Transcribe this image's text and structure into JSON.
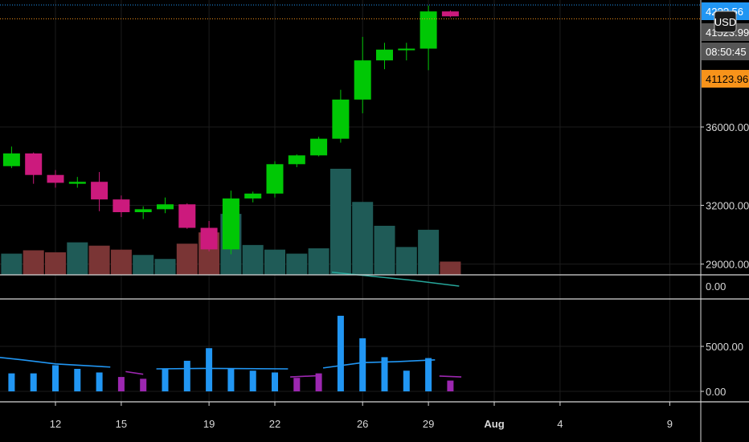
{
  "chart_data": {
    "type": "candlestick",
    "currency": "USD",
    "x_ticks": [
      "12",
      "15",
      "19",
      "22",
      "26",
      "29",
      "Aug",
      "4",
      "9"
    ],
    "price_axis": {
      "ticks": [
        {
          "label": "36000.00",
          "value": 36000
        },
        {
          "label": "32000.00",
          "value": 32000
        },
        {
          "label": "29000.00",
          "value": 29000
        }
      ],
      "volume_zero_label": "0.00",
      "ylim": [
        28000,
        42500
      ]
    },
    "price_tags": [
      {
        "label": "42??.56",
        "value": 42230,
        "color": "#2196f3"
      },
      {
        "label": "41523.99",
        "value": 41524,
        "color": "#555555"
      },
      {
        "label": "08:50:45",
        "value": 40900,
        "color": "#555555"
      },
      {
        "label": "41123.96",
        "value": 41124,
        "color": "#f7931a"
      }
    ],
    "candles": [
      {
        "day": 9,
        "open": 34400,
        "high": 34750,
        "low": 33850,
        "close": 34000
      },
      {
        "day": 10,
        "open": 34000,
        "high": 35000,
        "low": 33900,
        "close": 34650
      },
      {
        "day": 11,
        "open": 34650,
        "high": 34700,
        "low": 33100,
        "close": 33550
      },
      {
        "day": 12,
        "open": 33550,
        "high": 33800,
        "low": 32900,
        "close": 33150
      },
      {
        "day": 13,
        "open": 33100,
        "high": 33450,
        "low": 32900,
        "close": 33200
      },
      {
        "day": 14,
        "open": 33200,
        "high": 33700,
        "low": 31700,
        "close": 32300
      },
      {
        "day": 15,
        "open": 32300,
        "high": 32500,
        "low": 31400,
        "close": 31650
      },
      {
        "day": 16,
        "open": 31650,
        "high": 31950,
        "low": 31300,
        "close": 31800
      },
      {
        "day": 17,
        "open": 31800,
        "high": 32400,
        "low": 31600,
        "close": 32050
      },
      {
        "day": 18,
        "open": 32050,
        "high": 32100,
        "low": 30800,
        "close": 30850
      },
      {
        "day": 19,
        "open": 30850,
        "high": 31200,
        "low": 29650,
        "close": 29750
      },
      {
        "day": 20,
        "open": 29750,
        "high": 32750,
        "low": 29500,
        "close": 32350
      },
      {
        "day": 21,
        "open": 32350,
        "high": 32700,
        "low": 32150,
        "close": 32600
      },
      {
        "day": 22,
        "open": 32600,
        "high": 34250,
        "low": 32400,
        "close": 34100
      },
      {
        "day": 23,
        "open": 34100,
        "high": 34600,
        "low": 33950,
        "close": 34550
      },
      {
        "day": 24,
        "open": 34550,
        "high": 35500,
        "low": 34500,
        "close": 35400
      },
      {
        "day": 25,
        "open": 35400,
        "high": 37900,
        "low": 35200,
        "close": 37400
      },
      {
        "day": 26,
        "open": 37400,
        "high": 40600,
        "low": 36700,
        "close": 39400
      },
      {
        "day": 27,
        "open": 39400,
        "high": 40300,
        "low": 38950,
        "close": 39950
      },
      {
        "day": 28,
        "open": 39950,
        "high": 40300,
        "low": 39400,
        "close": 40000
      },
      {
        "day": 29,
        "open": 40000,
        "high": 42200,
        "low": 38900,
        "close": 41900
      },
      {
        "day": 30,
        "open": 41900,
        "high": 41950,
        "low": 41600,
        "close": 41650
      }
    ],
    "volume": [
      {
        "day": 9,
        "value": 1.4,
        "up": false
      },
      {
        "day": 10,
        "value": 1.6,
        "up": true
      },
      {
        "day": 11,
        "value": 1.85,
        "up": false
      },
      {
        "day": 12,
        "value": 1.7,
        "up": false
      },
      {
        "day": 13,
        "value": 2.45,
        "up": true
      },
      {
        "day": 14,
        "value": 2.2,
        "up": false
      },
      {
        "day": 15,
        "value": 1.9,
        "up": false
      },
      {
        "day": 16,
        "value": 1.5,
        "up": true
      },
      {
        "day": 17,
        "value": 1.2,
        "up": true
      },
      {
        "day": 18,
        "value": 2.35,
        "up": false
      },
      {
        "day": 19,
        "value": 3.2,
        "up": false
      },
      {
        "day": 20,
        "value": 4.6,
        "up": true
      },
      {
        "day": 21,
        "value": 2.25,
        "up": true
      },
      {
        "day": 22,
        "value": 1.9,
        "up": true
      },
      {
        "day": 23,
        "value": 1.6,
        "up": true
      },
      {
        "day": 24,
        "value": 2.0,
        "up": true
      },
      {
        "day": 25,
        "value": 8.0,
        "up": true
      },
      {
        "day": 26,
        "value": 5.5,
        "up": true
      },
      {
        "day": 27,
        "value": 3.7,
        "up": true
      },
      {
        "day": 28,
        "value": 2.1,
        "up": true
      },
      {
        "day": 29,
        "value": 3.4,
        "up": true
      },
      {
        "day": 30,
        "value": 1.0,
        "up": false
      }
    ],
    "volume_ma": [
      {
        "day": 24.6,
        "value": 0.2
      },
      {
        "day": 28.2,
        "value": -0.4
      },
      {
        "day": 30.4,
        "value": -0.85
      }
    ],
    "oscillator": {
      "ticks": [
        {
          "label": "5000.00",
          "value": 5000
        },
        {
          "label": "0.00",
          "value": 0
        }
      ],
      "ylim": [
        -400,
        8600
      ],
      "bars": [
        {
          "day": 8,
          "value": 1400,
          "color": "#9c27b0"
        },
        {
          "day": 9,
          "value": 1700,
          "color": "#9c27b0"
        },
        {
          "day": 10,
          "value": 2000,
          "color": "#2196f3"
        },
        {
          "day": 11,
          "value": 2000,
          "color": "#2196f3"
        },
        {
          "day": 12,
          "value": 2900,
          "color": "#2196f3"
        },
        {
          "day": 13,
          "value": 2500,
          "color": "#2196f3"
        },
        {
          "day": 14,
          "value": 2100,
          "color": "#2196f3"
        },
        {
          "day": 15,
          "value": 1600,
          "color": "#9c27b0"
        },
        {
          "day": 16,
          "value": 1400,
          "color": "#9c27b0"
        },
        {
          "day": 17,
          "value": 2500,
          "color": "#2196f3"
        },
        {
          "day": 18,
          "value": 3400,
          "color": "#2196f3"
        },
        {
          "day": 19,
          "value": 4800,
          "color": "#2196f3"
        },
        {
          "day": 20,
          "value": 2500,
          "color": "#2196f3"
        },
        {
          "day": 21,
          "value": 2300,
          "color": "#2196f3"
        },
        {
          "day": 22,
          "value": 2100,
          "color": "#2196f3"
        },
        {
          "day": 23,
          "value": 1500,
          "color": "#9c27b0"
        },
        {
          "day": 24,
          "value": 2000,
          "color": "#9c27b0"
        },
        {
          "day": 25,
          "value": 8400,
          "color": "#2196f3"
        },
        {
          "day": 26,
          "value": 5900,
          "color": "#2196f3"
        },
        {
          "day": 27,
          "value": 3800,
          "color": "#2196f3"
        },
        {
          "day": 28,
          "value": 2300,
          "color": "#2196f3"
        },
        {
          "day": 29,
          "value": 3700,
          "color": "#2196f3"
        },
        {
          "day": 30,
          "value": 1200,
          "color": "#9c27b0"
        }
      ],
      "ma_segments": [
        {
          "color": "#9c27b0",
          "points": [
            [
              6.2,
              2700
            ],
            [
              8,
              2200
            ]
          ]
        },
        {
          "color": "#2196f3",
          "points": [
            [
              8.6,
              4000
            ],
            [
              10.5,
              3500
            ],
            [
              12,
              3050
            ],
            [
              14.5,
              2700
            ]
          ]
        },
        {
          "color": "#9c27b0",
          "points": [
            [
              15.2,
              2200
            ],
            [
              16,
              1900
            ]
          ]
        },
        {
          "color": "#2196f3",
          "points": [
            [
              16.6,
              2500
            ],
            [
              19,
              2550
            ],
            [
              22.6,
              2500
            ]
          ]
        },
        {
          "color": "#9c27b0",
          "points": [
            [
              22.7,
              1600
            ],
            [
              24,
              1750
            ]
          ]
        },
        {
          "color": "#2196f3",
          "points": [
            [
              24.2,
              2600
            ],
            [
              26,
              3200
            ],
            [
              27.5,
              3300
            ],
            [
              29.3,
              3500
            ]
          ]
        },
        {
          "color": "#9c27b0",
          "points": [
            [
              29.5,
              1700
            ],
            [
              30.5,
              1600
            ]
          ]
        }
      ]
    },
    "colors": {
      "up_candle": "#00c805",
      "down_candle": "#cc1a7d",
      "volume_up": "#1f5b57",
      "volume_down": "#7a3535",
      "grid": "#1c1c1c",
      "separator": "#d8d8d8",
      "volume_ma": "#26a69a"
    }
  }
}
